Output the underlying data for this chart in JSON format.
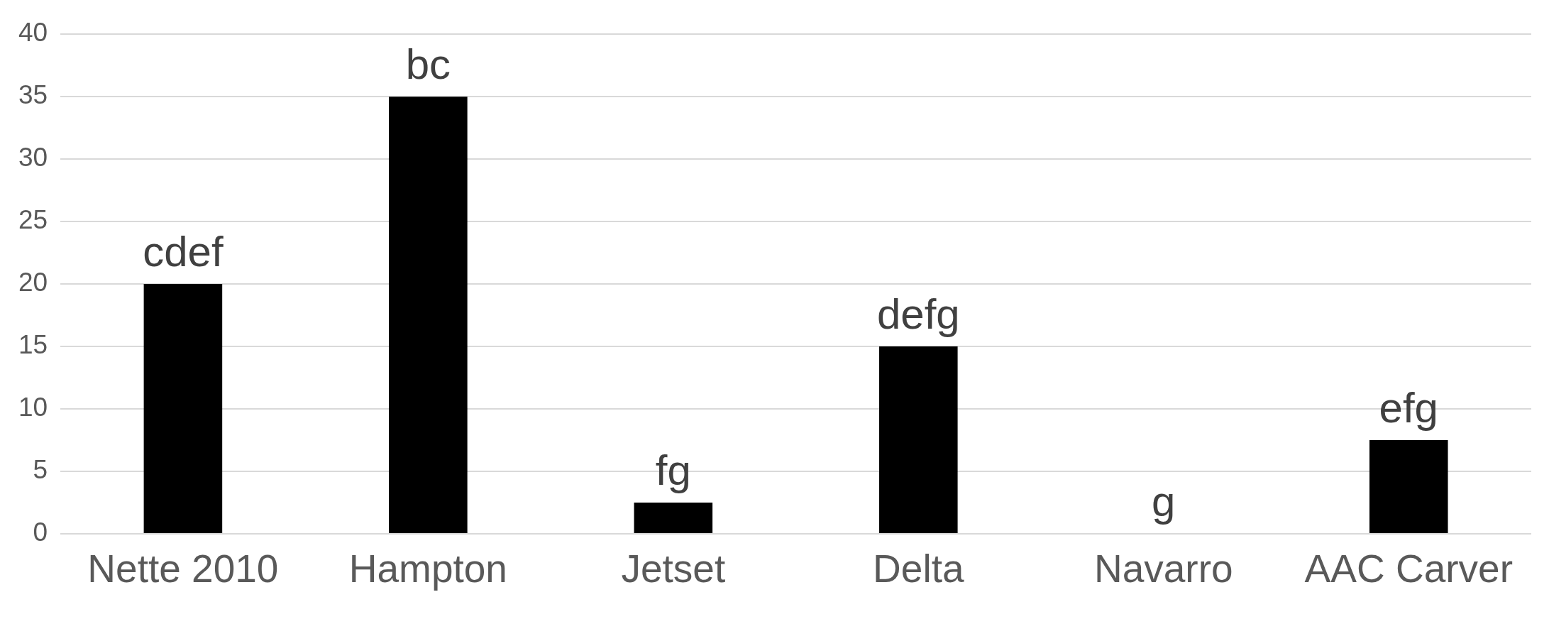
{
  "chart_data": {
    "type": "bar",
    "categories": [
      "Nette 2010",
      "Hampton",
      "Jetset",
      "Delta",
      "Navarro",
      "AAC Carver"
    ],
    "values": [
      20,
      35,
      2.5,
      15,
      0,
      7.5
    ],
    "color": "#000000",
    "value_labels": [
      "cdef",
      "bc",
      "fg",
      "defg",
      "g",
      "efg"
    ],
    "ylim": [
      0,
      40
    ],
    "yticks": [
      0,
      5,
      10,
      15,
      20,
      25,
      30,
      35,
      40
    ],
    "grid": "y",
    "legend": false
  }
}
